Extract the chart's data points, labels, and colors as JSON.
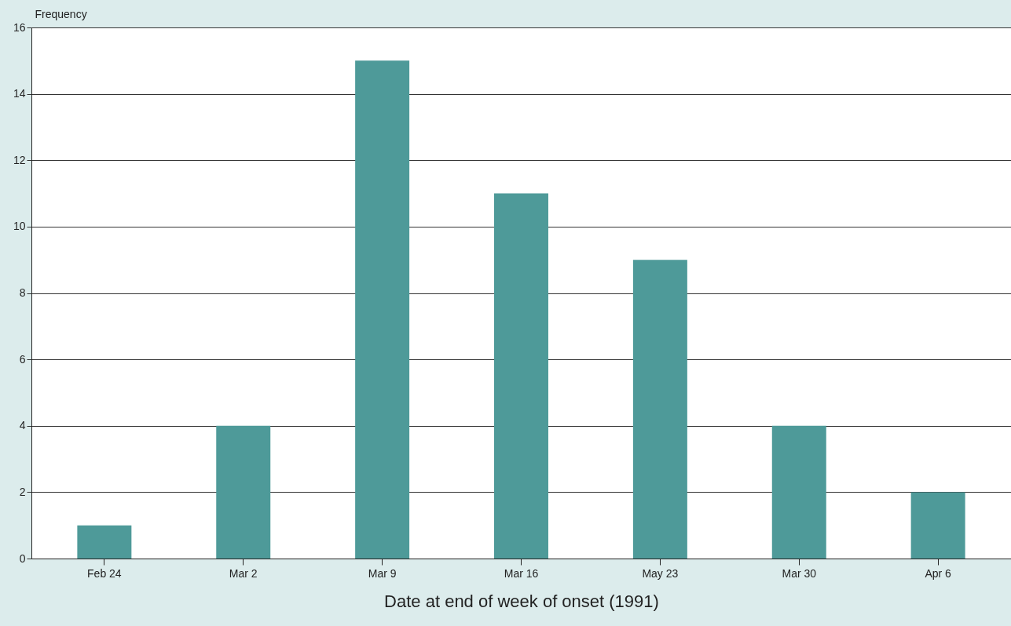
{
  "chart_data": {
    "type": "bar",
    "xlabel": "Date at end of week of onset (1991)",
    "ylabel": "Frequency",
    "categories": [
      "Feb 24",
      "Mar 2",
      "Mar 9",
      "Mar 16",
      "May 23",
      "Mar 30",
      "Apr 6"
    ],
    "values": [
      1,
      4,
      15,
      11,
      9,
      4,
      2
    ],
    "color": "#4e9a99",
    "ylim": [
      0,
      16
    ],
    "yticks": [
      0,
      2,
      4,
      6,
      8,
      10,
      12,
      14,
      16
    ],
    "grid": "y"
  }
}
